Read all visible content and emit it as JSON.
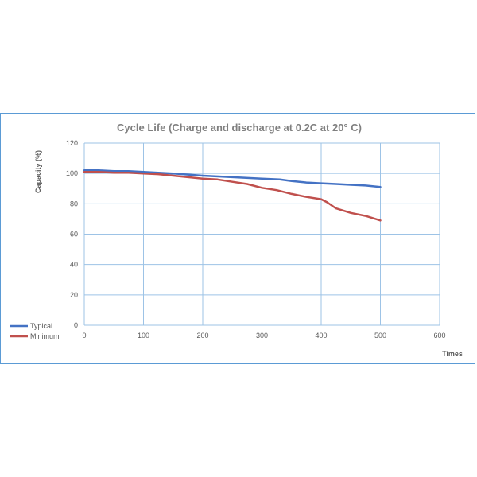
{
  "chart_data": {
    "type": "line",
    "title": "Cycle Life   (Charge and discharge at 0.2C at 20° C)",
    "xlabel": "Times",
    "ylabel": "Capacity (%)",
    "xlim": [
      0,
      600
    ],
    "ylim": [
      0,
      120
    ],
    "xticks": [
      0,
      100,
      200,
      300,
      400,
      500,
      600
    ],
    "yticks": [
      0,
      20,
      40,
      60,
      80,
      100,
      120
    ],
    "grid": true,
    "legend_position": "bottom-left",
    "series": [
      {
        "name": "Typical",
        "color": "#4472c4",
        "x": [
          0,
          25,
          50,
          75,
          100,
          150,
          200,
          250,
          300,
          330,
          350,
          375,
          400,
          425,
          450,
          475,
          500
        ],
        "values": [
          102,
          102,
          101.5,
          101.5,
          101,
          100,
          98.5,
          97.5,
          96.5,
          96,
          95,
          94,
          93.5,
          93,
          92.5,
          92,
          91
        ]
      },
      {
        "name": "Minimum",
        "color": "#c0504d",
        "x": [
          0,
          25,
          50,
          75,
          100,
          125,
          150,
          175,
          200,
          225,
          250,
          275,
          300,
          325,
          350,
          375,
          400,
          410,
          425,
          450,
          475,
          500
        ],
        "values": [
          101,
          101,
          100.5,
          100.5,
          100,
          99.5,
          98.5,
          97.5,
          96.5,
          96,
          94.5,
          93,
          90.5,
          89,
          86.5,
          84.5,
          83,
          81,
          77,
          74,
          72,
          69
        ]
      }
    ]
  }
}
